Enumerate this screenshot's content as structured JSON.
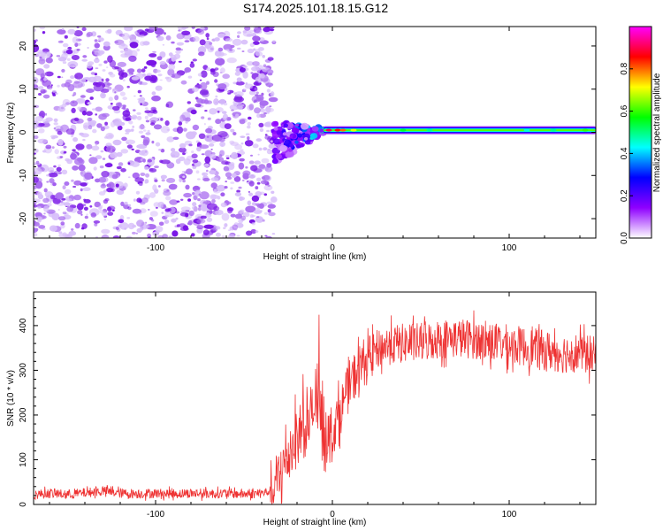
{
  "figure_title": "S174.2025.101.18.15.G12",
  "chart_data": [
    {
      "type": "heatmap",
      "title": "S174.2025.101.18.15.G12",
      "xlabel": "Height of straight line (km)",
      "ylabel": "Frequency (Hz)",
      "xlim": [
        -169,
        149
      ],
      "ylim": [
        -24.5,
        24.5
      ],
      "x_ticks": [
        -100,
        0,
        100
      ],
      "x_tick_labels": [
        "-100",
        "0",
        "100"
      ],
      "y_ticks": [
        -20,
        -10,
        0,
        10,
        20
      ],
      "y_tick_labels": [
        "-20",
        "-10",
        "0",
        "10",
        "20"
      ],
      "colorbar": {
        "label": "Normalized spectral amplitude",
        "range": [
          0,
          1
        ],
        "ticks": [
          0.0,
          0.2,
          0.4,
          0.6,
          0.8
        ],
        "tick_labels": [
          "0.0",
          "0.2",
          "0.4",
          "0.6",
          "0.8"
        ],
        "colormap": [
          "#ffffff",
          "#8f00ff",
          "#0000ff",
          "#00ffff",
          "#00ff00",
          "#ffff00",
          "#ff0000",
          "#ff00ff"
        ]
      },
      "features": [
        {
          "kind": "noise",
          "x_range": [
            -169,
            -33
          ],
          "freq_range": [
            -24.5,
            24.5
          ],
          "amplitude_range": [
            0.0,
            0.12
          ]
        },
        {
          "kind": "transition",
          "x_range": [
            -33,
            -5
          ],
          "freq_range": [
            -8,
            2
          ],
          "amplitude_range": [
            0.1,
            0.4
          ]
        },
        {
          "kind": "signal",
          "x_range": [
            -5,
            149
          ],
          "frequency": 0.5,
          "amplitude_range": [
            0.3,
            0.95
          ]
        }
      ],
      "grid": false,
      "legend": "none"
    },
    {
      "type": "line",
      "xlabel": "Height of straight line (km)",
      "ylabel": "SNR (10 * v/v)",
      "xlim": [
        -169,
        149
      ],
      "ylim": [
        0,
        475
      ],
      "x_ticks": [
        -100,
        0,
        100
      ],
      "x_tick_labels": [
        "-100",
        "0",
        "100"
      ],
      "y_ticks": [
        0,
        100,
        200,
        300,
        400
      ],
      "y_tick_labels": [
        "0",
        "100",
        "200",
        "300",
        "400"
      ],
      "line_color": "#ee3333",
      "series": [
        {
          "x": [
            -169,
            -160,
            -150,
            -140,
            -130,
            -126,
            -120,
            -110,
            -100,
            -90,
            -80,
            -70,
            -60,
            -50,
            -40,
            -35,
            -30,
            -25,
            -20,
            -15,
            -12,
            -10,
            -7,
            -5,
            -2,
            0,
            5,
            10,
            15,
            20,
            25,
            30,
            40,
            50,
            60,
            70,
            80,
            90,
            100,
            110,
            120,
            130,
            140,
            149
          ],
          "y": [
            22,
            25,
            22,
            26,
            30,
            28,
            25,
            24,
            25,
            24,
            25,
            24,
            25,
            23,
            25,
            30,
            60,
            110,
            155,
            175,
            200,
            215,
            210,
            175,
            150,
            160,
            215,
            270,
            305,
            330,
            345,
            355,
            360,
            362,
            370,
            372,
            370,
            362,
            358,
            352,
            345,
            338,
            340,
            330
          ]
        }
      ],
      "grid": false,
      "legend": "none"
    }
  ]
}
